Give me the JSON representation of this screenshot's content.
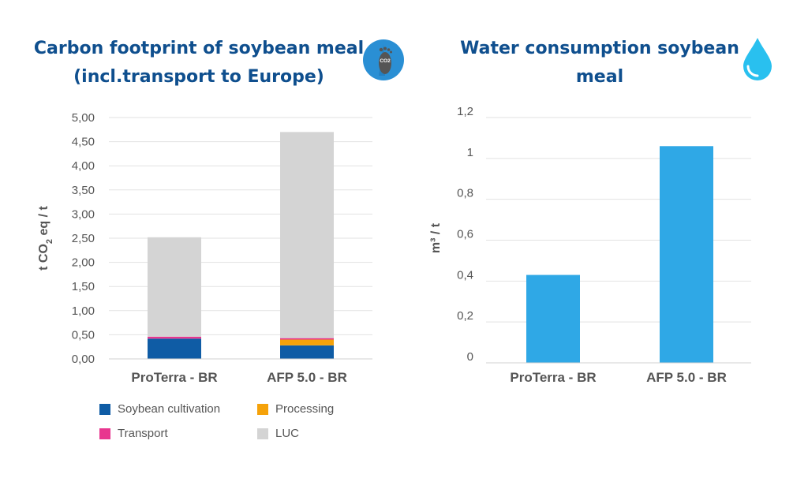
{
  "left": {
    "title_line1": "Carbon footprint of soybean meal",
    "title_line2": "(incl.transport to Europe)",
    "icon": "co2-footprint-icon",
    "icon_text": "CO2"
  },
  "right": {
    "title_line1": "Water consumption soybean",
    "title_line2": "meal",
    "icon": "water-drop-icon"
  },
  "colors": {
    "title": "#0f4f8e",
    "soybean_cultivation": "#0f5ca5",
    "processing": "#f5a20a",
    "transport": "#e8368f",
    "luc": "#d4d4d4",
    "water_bar": "#2fa8e6"
  },
  "chart_data": [
    {
      "type": "bar",
      "stacked": true,
      "categories": [
        "ProTerra - BR",
        "AFP 5.0 - BR"
      ],
      "series": [
        {
          "name": "Soybean cultivation",
          "values": [
            0.42,
            0.28
          ]
        },
        {
          "name": "Processing",
          "values": [
            0.0,
            0.12
          ]
        },
        {
          "name": "Transport",
          "values": [
            0.04,
            0.03
          ]
        },
        {
          "name": "LUC",
          "values": [
            2.06,
            4.27
          ]
        }
      ],
      "ylabel": "t CO2 eq / t",
      "ylim": [
        0,
        5
      ],
      "yticks": [
        "0,00",
        "0,50",
        "1,00",
        "1,50",
        "2,00",
        "2,50",
        "3,00",
        "3,50",
        "4,00",
        "4,50",
        "5,00"
      ],
      "grid": true,
      "legend": "bottom"
    },
    {
      "type": "bar",
      "categories": [
        "ProTerra - BR",
        "AFP 5.0 - BR"
      ],
      "values": [
        0.43,
        1.06
      ],
      "ylabel": "m³ / t",
      "ylim": [
        0,
        1.2
      ],
      "yticks": [
        "0",
        "0,2",
        "0,4",
        "0,6",
        "0,8",
        "1",
        "1,2"
      ],
      "grid": true
    }
  ]
}
